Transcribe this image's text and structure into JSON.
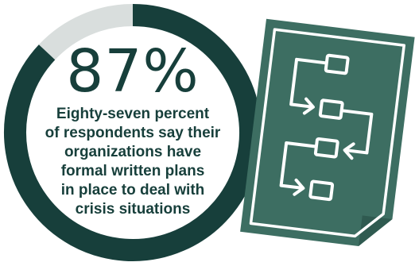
{
  "chart_data": {
    "type": "pie",
    "categories": [
      "have formal written crisis plans",
      "do not"
    ],
    "values": [
      87,
      13
    ],
    "colors": [
      "#173f3b",
      "#d9dedd"
    ]
  },
  "headline": {
    "value": "87%",
    "lines": [
      "Eighty-seven percent",
      "of respondents say their",
      "organizations have",
      "formal written plans",
      "in place to deal with",
      "crisis situations"
    ]
  },
  "icon": {
    "name": "flowchart-document-icon",
    "color": "#3d6e62"
  }
}
